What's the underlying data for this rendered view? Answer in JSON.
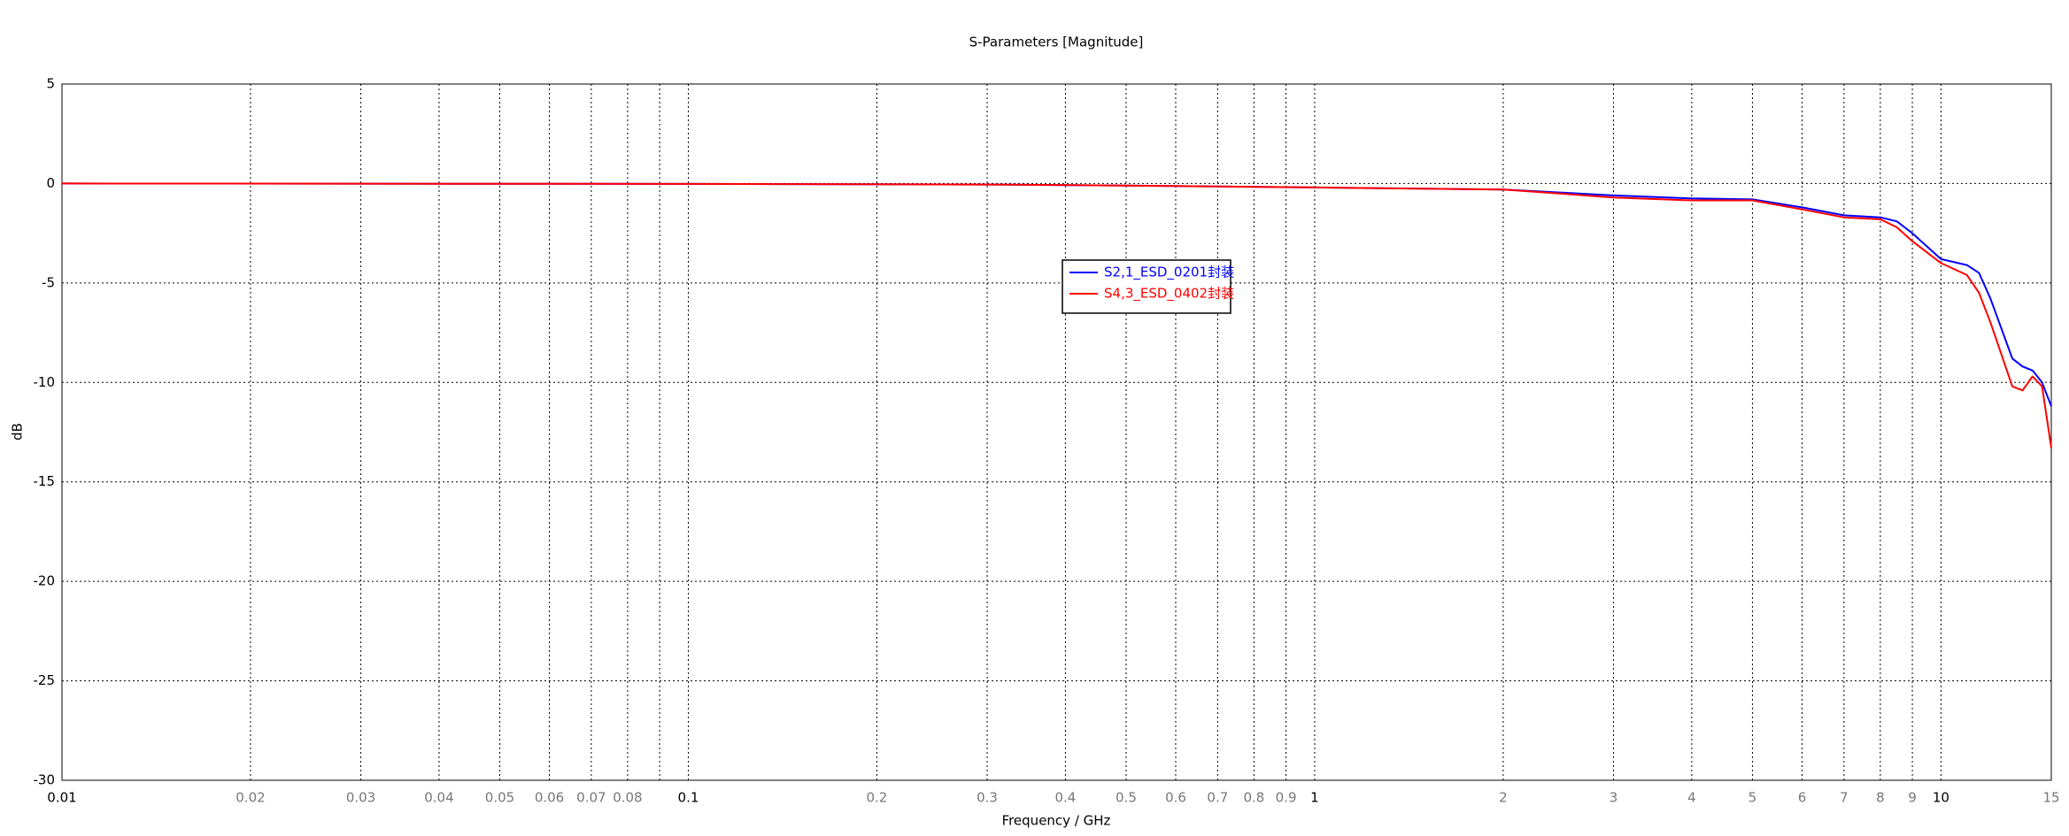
{
  "chart_data": {
    "type": "line",
    "title": "S-Parameters [Magnitude]",
    "x_label": "Frequency / GHz",
    "y_label": "dB",
    "xscale": "log",
    "grid": true,
    "xlim": [
      0.01,
      15
    ],
    "ylim": [
      -30,
      5
    ],
    "xticks": [
      0.01,
      0.02,
      0.03,
      0.04,
      0.05,
      0.06,
      0.07,
      0.08,
      {
        "value": 0.09,
        "label": null
      },
      0.1,
      0.2,
      0.3,
      0.4,
      0.5,
      0.6,
      0.7,
      0.8,
      0.9,
      1,
      2,
      3,
      4,
      5,
      6,
      7,
      8,
      9,
      10,
      15
    ],
    "yticks": [
      -30,
      -25,
      -20,
      -15,
      -10,
      -5,
      0,
      5
    ],
    "x": [
      0.01,
      0.1,
      0.3,
      0.5,
      1,
      2,
      3,
      4,
      5,
      6,
      7,
      8,
      8.5,
      9,
      10,
      11,
      11.5,
      12,
      13,
      13.5,
      14,
      14.5,
      15
    ],
    "series": [
      {
        "name": "S2,1_ESD_0201封装",
        "color": "#0000ff",
        "values": [
          0,
          -0.02,
          -0.05,
          -0.1,
          -0.2,
          -0.3,
          -0.6,
          -0.75,
          -0.8,
          -1.2,
          -1.6,
          -1.7,
          -1.9,
          -2.5,
          -3.8,
          -4.1,
          -4.5,
          -5.8,
          -8.8,
          -9.2,
          -9.4,
          -10,
          -11.2
        ]
      },
      {
        "name": "S4,3_ESD_0402封装",
        "color": "#ff0000",
        "values": [
          0,
          -0.02,
          -0.05,
          -0.1,
          -0.2,
          -0.3,
          -0.7,
          -0.85,
          -0.85,
          -1.3,
          -1.7,
          -1.8,
          -2.2,
          -2.9,
          -4.0,
          -4.6,
          -5.5,
          -7.0,
          -10.2,
          -10.4,
          -9.7,
          -10.2,
          -13.3
        ]
      }
    ]
  }
}
